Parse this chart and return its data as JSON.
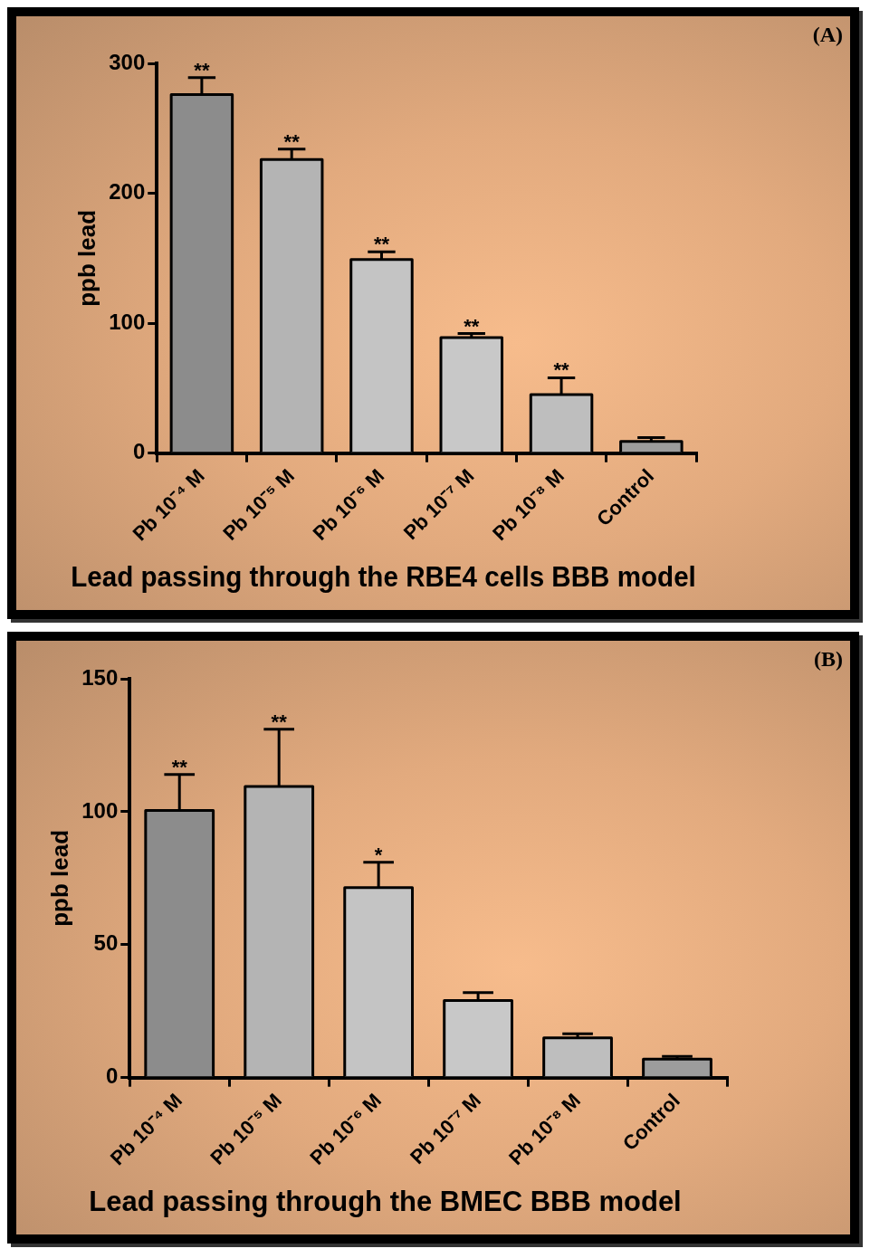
{
  "chart_data": [
    {
      "type": "bar",
      "title": "Lead passing through the RBE4 cells BBB model",
      "ylabel": "ppb lead",
      "categories": [
        "Pb 10⁻⁴ M",
        "Pb 10⁻⁵ M",
        "Pb 10⁻⁶ M",
        "Pb 10⁻⁷ M",
        "Pb 10⁻⁸ M",
        "Control"
      ],
      "values": [
        276,
        226,
        149,
        89,
        45,
        9
      ],
      "errors": [
        [
          276,
          289
        ],
        [
          226,
          234
        ],
        [
          149,
          155
        ],
        [
          89,
          92
        ],
        [
          45,
          58
        ],
        [
          9,
          12
        ]
      ],
      "colors": [
        "#8c8c8c",
        "#b4b4b4",
        "#c4c4c4",
        "#c8c8c8",
        "#bebebe",
        "#9c9c9c"
      ],
      "ylim": [
        0,
        300
      ],
      "yticks": [
        0,
        100,
        200,
        300
      ],
      "annotations": [
        "(A)",
        {
          "text": "**",
          "x": "Pb 10⁻⁴ M",
          "y": 289
        },
        {
          "text": "**",
          "x": "Pb 10⁻⁵ M",
          "y": 234
        },
        {
          "text": "**",
          "x": "Pb 10⁻⁶ M",
          "y": 155
        },
        {
          "text": "**",
          "x": "Pb 10⁻⁷ M",
          "y": 92
        },
        {
          "text": "**",
          "x": "Pb 10⁻⁸ M",
          "y": 58
        }
      ]
    },
    {
      "type": "bar",
      "title": "Lead passing through the BMEC BBB model",
      "ylabel": "ppb lead",
      "categories": [
        "Pb 10⁻⁴ M",
        "Pb 10⁻⁵ M",
        "Pb 10⁻⁶ M",
        "Pb 10⁻⁷ M",
        "Pb 10⁻⁸ M",
        "Control"
      ],
      "values": [
        100.5,
        109.5,
        71.5,
        29,
        15,
        7
      ],
      "errors": [
        [
          100.5,
          114
        ],
        [
          109.5,
          131
        ],
        [
          71.5,
          81
        ],
        [
          29,
          32
        ],
        [
          15,
          16.5
        ],
        [
          7,
          8
        ]
      ],
      "colors": [
        "#8c8c8c",
        "#b4b4b4",
        "#c4c4c4",
        "#c8c8c8",
        "#bebebe",
        "#9c9c9c"
      ],
      "ylim": [
        0,
        150
      ],
      "yticks": [
        0,
        50,
        100,
        150
      ],
      "annotations": [
        "(B)",
        {
          "text": "**",
          "x": "Pb 10⁻⁴ M",
          "y": 114
        },
        {
          "text": "**",
          "x": "Pb 10⁻⁵ M",
          "y": 131
        },
        {
          "text": "*",
          "x": "Pb 10⁻⁶ M",
          "y": 81
        }
      ]
    }
  ]
}
